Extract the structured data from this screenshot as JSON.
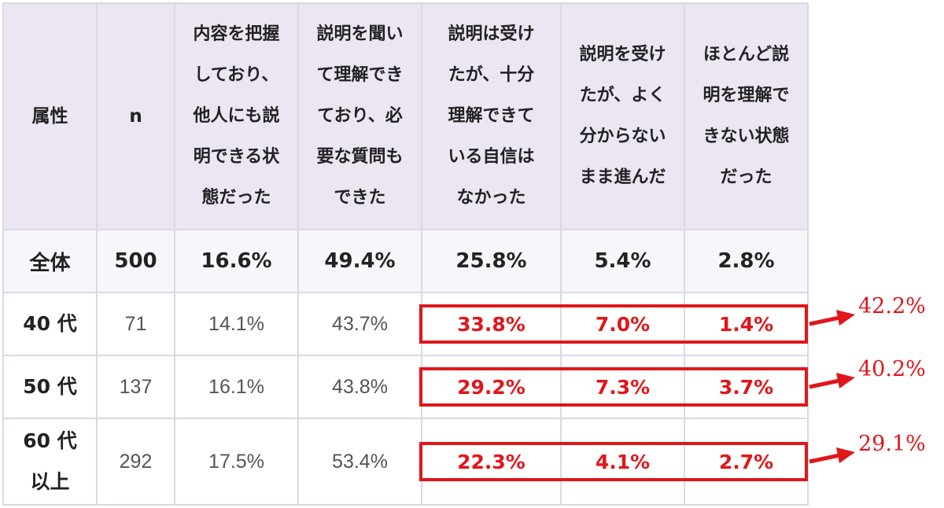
{
  "chart_data": {
    "type": "table",
    "columns": [
      {
        "key": "attr",
        "label": "属性"
      },
      {
        "key": "n",
        "label": "n"
      },
      {
        "key": "c1",
        "label": "内容を把握しており、他人にも説明できる状態だった"
      },
      {
        "key": "c2",
        "label": "説明を聞いて理解できており、必要な質問もできた"
      },
      {
        "key": "c3",
        "label": "説明は受けたが、十分理解できている自信はなかった"
      },
      {
        "key": "c4",
        "label": "説明を受けたが、よく分からないまま進んだ"
      },
      {
        "key": "c5",
        "label": "ほとんど説明を理解できない状態だった"
      }
    ],
    "header_lines": {
      "attr": [
        "属性"
      ],
      "n": [
        "n"
      ],
      "c1": [
        "内容を把握",
        "しており、",
        "他人にも説",
        "明できる状",
        "態だった"
      ],
      "c2": [
        "説明を聞い",
        "て理解でき",
        "ており、必",
        "要な質問も",
        "できた"
      ],
      "c3": [
        "説明は受け",
        "たが、十分",
        "理解できて",
        "いる自信は",
        "なかった"
      ],
      "c4": [
        "説明を受け",
        "たが、よく",
        "分からない",
        "まま進んだ"
      ],
      "c5": [
        "ほとんど説",
        "明を理解で",
        "きない状態",
        "だった"
      ]
    },
    "rows": [
      {
        "attr": "全体",
        "attr_lines": [
          "全体"
        ],
        "n": "500",
        "c1": "16.6%",
        "c2": "49.4%",
        "c3": "25.8%",
        "c4": "5.4%",
        "c5": "2.8%"
      },
      {
        "attr": "40 代",
        "attr_lines": [
          "40 代"
        ],
        "n": "71",
        "c1": "14.1%",
        "c2": "43.7%",
        "c3": "33.8%",
        "c4": "7.0%",
        "c5": "1.4%",
        "sum": "42.2%"
      },
      {
        "attr": "50 代",
        "attr_lines": [
          "50 代"
        ],
        "n": "137",
        "c1": "16.1%",
        "c2": "43.8%",
        "c3": "29.2%",
        "c4": "7.3%",
        "c5": "3.7%",
        "sum": "40.2%"
      },
      {
        "attr": "60 代以上",
        "attr_lines": [
          "60 代",
          "以上"
        ],
        "n": "292",
        "c1": "17.5%",
        "c2": "53.4%",
        "c3": "22.3%",
        "c4": "4.1%",
        "c5": "2.7%",
        "sum": "29.1%"
      }
    ],
    "highlight_columns": [
      "c3",
      "c4",
      "c5"
    ],
    "highlight_color": "#e0161b",
    "header_bg": "#ece5f2",
    "total_row_bg": "#f8f5fb",
    "border_color": "#ddd8e4"
  }
}
